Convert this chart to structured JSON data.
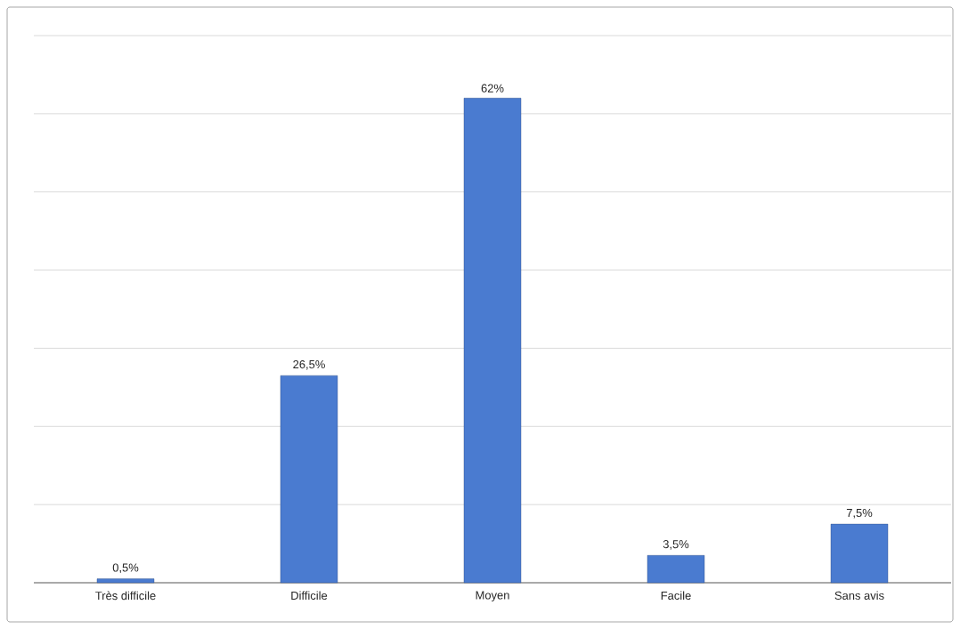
{
  "chart_data": {
    "type": "bar",
    "categories": [
      "Très difficile",
      "Difficile",
      "Moyen",
      "Facile",
      "Sans avis"
    ],
    "values": [
      0.5,
      26.5,
      62,
      3.5,
      7.5
    ],
    "value_labels": [
      "0,5%",
      "26,5%",
      "62%",
      "3,5%",
      "7,5%"
    ],
    "color": "#4a7bd0",
    "ylim": [
      0,
      70
    ],
    "yticks": [
      {
        "value": 0,
        "label": null
      },
      {
        "value": 10,
        "label": null
      },
      {
        "value": 20,
        "label": null
      },
      {
        "value": 30,
        "label": null
      },
      {
        "value": 40,
        "label": null
      },
      {
        "value": 50,
        "label": null
      },
      {
        "value": 60,
        "label": null
      },
      {
        "value": 70,
        "label": null
      }
    ],
    "grid": "y",
    "tick_labels": "x"
  }
}
